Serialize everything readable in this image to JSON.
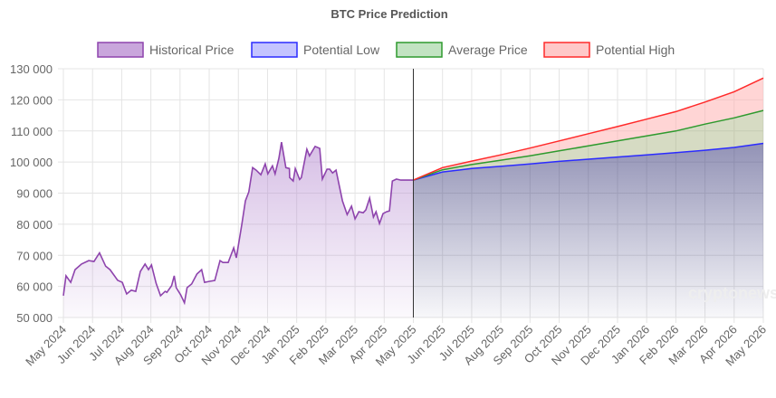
{
  "chart_data": {
    "type": "area",
    "title": "BTC Price Prediction",
    "ylim": [
      50000,
      130000
    ],
    "y_ticks": [
      "50 000",
      "60 000",
      "70 000",
      "80 000",
      "90 000",
      "100 000",
      "110 000",
      "120 000",
      "130 000"
    ],
    "x_ticks": [
      "May 2024",
      "Jun 2024",
      "Jul 2024",
      "Aug 2024",
      "Sep 2024",
      "Oct 2024",
      "Nov 2024",
      "Dec 2024",
      "Jan 2025",
      "Feb 2025",
      "Mar 2025",
      "Apr 2025",
      "May 2025",
      "Jun 2025",
      "Jul 2025",
      "Aug 2025",
      "Sep 2025",
      "Oct 2025",
      "Nov 2025",
      "Dec 2025",
      "Jan 2026",
      "Feb 2026",
      "Mar 2026",
      "Apr 2026",
      "May 2026"
    ],
    "grid": true,
    "legend": "top",
    "watermark": "cryptonews",
    "historical": {
      "name": "Historical Price",
      "color": "#8e44ad",
      "x_months": [
        0,
        0.09,
        0.25,
        0.4,
        0.62,
        0.87,
        1.05,
        1.24,
        1.45,
        1.6,
        1.86,
        2.02,
        2.11,
        2.17,
        2.33,
        2.48,
        2.64,
        2.8,
        2.92,
        3.02,
        3.18,
        3.33,
        3.49,
        3.55,
        3.71,
        3.8,
        3.87,
        4.02,
        4.15,
        4.24,
        4.4,
        4.58,
        4.74,
        4.84,
        5.0,
        5.19,
        5.37,
        5.47,
        5.65,
        5.84,
        5.93,
        6.12,
        6.24,
        6.36,
        6.49,
        6.61,
        6.77,
        6.92,
        7.01,
        7.17,
        7.26,
        7.39,
        7.48,
        7.63,
        7.75,
        7.76,
        7.88,
        7.95,
        8.1,
        8.16,
        8.35,
        8.44,
        8.63,
        8.79,
        8.88,
        9.04,
        9.13,
        9.23,
        9.35,
        9.57,
        9.73,
        9.88,
        10.0,
        10.13,
        10.28,
        10.37,
        10.5,
        10.63,
        10.72,
        10.84,
        10.96,
        11.08,
        11.18,
        11.28,
        11.42,
        11.57,
        11.73,
        11.86,
        12.0
      ],
      "values": [
        57000,
        63400,
        61300,
        65400,
        67200,
        68300,
        68000,
        70800,
        66500,
        65400,
        62000,
        61300,
        59000,
        57600,
        58800,
        58400,
        64800,
        67200,
        65400,
        66900,
        61000,
        57000,
        58400,
        58100,
        60200,
        63400,
        59600,
        57300,
        54700,
        59600,
        60800,
        64000,
        65400,
        61300,
        61600,
        61900,
        68300,
        67700,
        67700,
        72400,
        69200,
        80000,
        87500,
        90400,
        98200,
        97400,
        95900,
        99400,
        96200,
        98800,
        96200,
        101200,
        106400,
        98200,
        97900,
        95000,
        93900,
        97900,
        94400,
        95000,
        104100,
        102000,
        105000,
        104400,
        94500,
        97700,
        97700,
        96500,
        97400,
        87500,
        83100,
        85800,
        81700,
        84000,
        83700,
        84600,
        88400,
        82300,
        84000,
        80200,
        83400,
        84000,
        84300,
        93900,
        94500,
        94200,
        94200,
        94200,
        94200
      ]
    },
    "prediction_x": [
      "May 2025",
      "Jun 2025",
      "Jul 2025",
      "Aug 2025",
      "Sep 2025",
      "Oct 2025",
      "Nov 2025",
      "Dec 2025",
      "Jan 2026",
      "Feb 2026",
      "Mar 2026",
      "Apr 2026",
      "May 2026"
    ],
    "series": [
      {
        "name": "Potential Low",
        "color": "#2b2bff",
        "values": [
          94200,
          96800,
          97900,
          98600,
          99400,
          100200,
          100900,
          101600,
          102300,
          103000,
          103800,
          104700,
          106000
        ]
      },
      {
        "name": "Average Price",
        "color": "#2e9a2e",
        "values": [
          94200,
          97500,
          99200,
          100600,
          102000,
          103600,
          105200,
          106800,
          108400,
          110000,
          112200,
          114200,
          116600
        ]
      },
      {
        "name": "Potential High",
        "color": "#ff2a2a",
        "values": [
          94200,
          98200,
          100300,
          102300,
          104500,
          106800,
          109100,
          111400,
          113800,
          116200,
          119300,
          122600,
          127000
        ]
      }
    ]
  }
}
